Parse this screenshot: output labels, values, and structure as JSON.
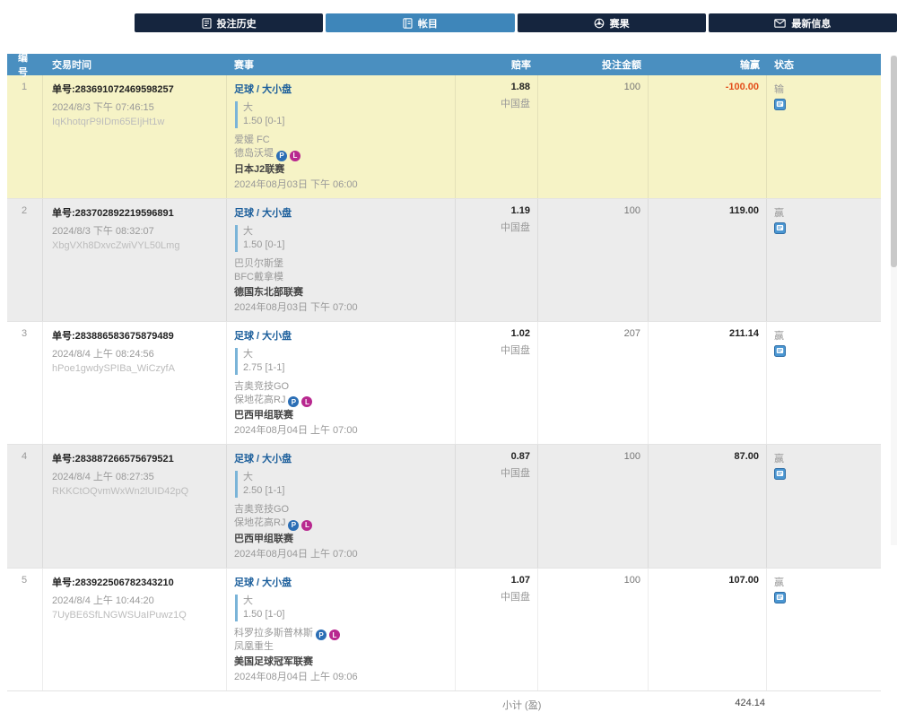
{
  "nav": {
    "items": [
      {
        "label": "投注历史",
        "icon": "bet-history-icon",
        "active": false
      },
      {
        "label": "帐目",
        "icon": "ledger-icon",
        "active": true
      },
      {
        "label": "赛果",
        "icon": "results-icon",
        "active": false
      },
      {
        "label": "最新信息",
        "icon": "mail-icon",
        "active": false
      }
    ]
  },
  "table": {
    "headers": {
      "no": "编号",
      "time": "交易时间",
      "match": "赛事",
      "odds": "赔率",
      "stake": "投注金额",
      "winloss": "输赢",
      "status": "状态"
    },
    "rows": [
      {
        "no": "1",
        "ticket": "单号:283691072469598257",
        "placed_time": "2024/8/3 下午 07:46:15",
        "ref_code": "IqKhotqrP9IDm65EIjHt1w",
        "sport": "足球 / 大小盘",
        "pick": "大",
        "line": "1.50 [0-1]",
        "teams": [
          {
            "name": "爱媛 FC",
            "badges": []
          },
          {
            "name": "德岛沃堤",
            "badges": [
              "P",
              "L"
            ]
          }
        ],
        "league": "日本J2联赛",
        "match_time": "2024年08月03日 下午 06:00",
        "odds": "1.88",
        "odds_type": "中国盘",
        "stake": "100",
        "result": "-100.00",
        "result_negative": true,
        "status": "输",
        "highlight": "yellow"
      },
      {
        "no": "2",
        "ticket": "单号:283702892219596891",
        "placed_time": "2024/8/3 下午 08:32:07",
        "ref_code": "XbgVXh8DxvcZwiVYL50Lmg",
        "sport": "足球 / 大小盘",
        "pick": "大",
        "line": "1.50 [0-1]",
        "teams": [
          {
            "name": "巴贝尔斯堡",
            "badges": []
          },
          {
            "name": "BFC戴拿模",
            "badges": []
          }
        ],
        "league": "德国东北部联赛",
        "match_time": "2024年08月03日 下午 07:00",
        "odds": "1.19",
        "odds_type": "中国盘",
        "stake": "100",
        "result": "119.00",
        "result_negative": false,
        "status": "赢",
        "highlight": "gray"
      },
      {
        "no": "3",
        "ticket": "单号:283886583675879489",
        "placed_time": "2024/8/4 上午 08:24:56",
        "ref_code": "hPoe1gwdySPIBa_WiCzyfA",
        "sport": "足球 / 大小盘",
        "pick": "大",
        "line": "2.75 [1-1]",
        "teams": [
          {
            "name": "吉奥竞技GO",
            "badges": []
          },
          {
            "name": "保地花高RJ",
            "badges": [
              "P",
              "L"
            ]
          }
        ],
        "league": "巴西甲组联赛",
        "match_time": "2024年08月04日 上午 07:00",
        "odds": "1.02",
        "odds_type": "中国盘",
        "stake": "207",
        "result": "211.14",
        "result_negative": false,
        "status": "赢",
        "highlight": "white"
      },
      {
        "no": "4",
        "ticket": "单号:283887266575679521",
        "placed_time": "2024/8/4 上午 08:27:35",
        "ref_code": "RKKCtOQvmWxWn2lUID42pQ",
        "sport": "足球 / 大小盘",
        "pick": "大",
        "line": "2.50 [1-1]",
        "teams": [
          {
            "name": "吉奥竞技GO",
            "badges": []
          },
          {
            "name": "保地花高RJ",
            "badges": [
              "P",
              "L"
            ]
          }
        ],
        "league": "巴西甲组联赛",
        "match_time": "2024年08月04日 上午 07:00",
        "odds": "0.87",
        "odds_type": "中国盘",
        "stake": "100",
        "result": "87.00",
        "result_negative": false,
        "status": "赢",
        "highlight": "gray"
      },
      {
        "no": "5",
        "ticket": "单号:283922506782343210",
        "placed_time": "2024/8/4 上午 10:44:20",
        "ref_code": "7UyBE6SfLNGWSUaIPuwz1Q",
        "sport": "足球 / 大小盘",
        "pick": "大",
        "line": "1.50 [1-0]",
        "teams": [
          {
            "name": "科罗拉多斯普林斯",
            "badges": [
              "P",
              "L"
            ]
          },
          {
            "name": "凤凰重生",
            "badges": []
          }
        ],
        "league": "美国足球冠军联赛",
        "match_time": "2024年08月04日 上午 09:06",
        "odds": "1.07",
        "odds_type": "中国盘",
        "stake": "100",
        "result": "107.00",
        "result_negative": false,
        "status": "赢",
        "highlight": "white"
      }
    ],
    "footer": {
      "label": "小计 (盈)",
      "value": "424.14"
    }
  },
  "colors": {
    "nav_dark": "#15253e",
    "nav_active": "#3e86ba",
    "header_blue": "#4a8fc0",
    "row_highlight_yellow": "#f6f3c6",
    "row_gray": "#ececec",
    "link_blue": "#1b5e9b",
    "loss_red": "#e34d1a",
    "badge_p_blue": "#2b6eb5",
    "badge_l_magenta": "#b8288f"
  }
}
